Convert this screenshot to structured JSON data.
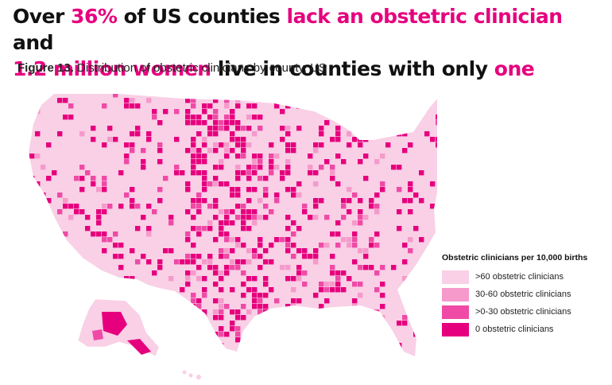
{
  "headline": {
    "p1": "Over ",
    "p2": "36%",
    "p3": " of US counties ",
    "p4": "lack an obstetric clinician",
    "p5": " and",
    "p6": "1.2 million women",
    "p7": " live in counties with only ",
    "p8": "one"
  },
  "caption": {
    "figure": "Figure 13.",
    "text": " Distribution of obstetric clinicians by county, US"
  },
  "legend": {
    "title": "Obstetric clinicians per 10,000 births",
    "items": [
      {
        "label": ">60 obstetric clinicians",
        "color": "#f9d0e6"
      },
      {
        "label": "30-60 obstetric clinicians",
        "color": "#f59acb"
      },
      {
        "label": ">0-30 obstetric clinicians",
        "color": "#ef4aa6"
      },
      {
        "label": "0 obstetric clinicians",
        "color": "#e6007e"
      }
    ]
  },
  "colors": {
    "accent": "#e6007e",
    "base_fill": "#f9d0e6",
    "border": "#ffffff"
  }
}
